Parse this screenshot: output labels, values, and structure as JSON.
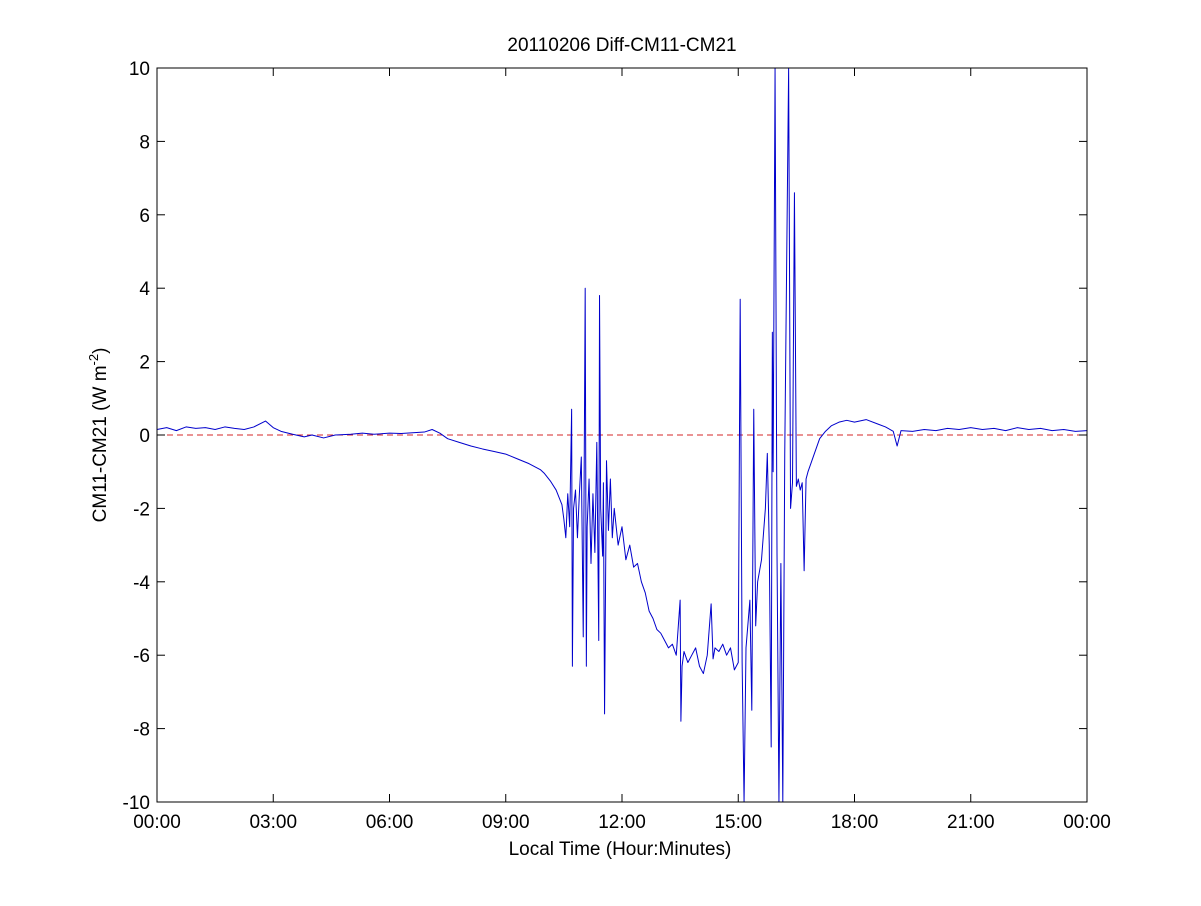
{
  "chart_data": {
    "type": "line",
    "title": "20110206 Diff-CM11-CM21",
    "xlabel": "Local Time (Hour:Minutes)",
    "ylabel": {
      "main": "CM11-CM21 (W m",
      "superscript": "-2",
      "close": ")"
    },
    "xlim": [
      0,
      24
    ],
    "ylim": [
      -10,
      10
    ],
    "x_unit": "hours",
    "x_ticks": [
      0,
      3,
      6,
      9,
      12,
      15,
      18,
      21,
      24
    ],
    "x_tick_labels": [
      "00:00",
      "03:00",
      "06:00",
      "09:00",
      "12:00",
      "15:00",
      "18:00",
      "21:00",
      "00:00"
    ],
    "y_ticks": [
      -10,
      -8,
      -6,
      -4,
      -2,
      0,
      2,
      4,
      6,
      8,
      10
    ],
    "y_tick_labels": [
      "-10",
      "-8",
      "-6",
      "-4",
      "-2",
      "0",
      "2",
      "4",
      "6",
      "8",
      "10"
    ],
    "grid": false,
    "reference_line": {
      "y": 0,
      "style": "dashed",
      "color": "#d62728"
    },
    "series": [
      {
        "color": "#0000cc",
        "points": [
          [
            0.0,
            0.15
          ],
          [
            0.25,
            0.2
          ],
          [
            0.5,
            0.12
          ],
          [
            0.75,
            0.22
          ],
          [
            1.0,
            0.18
          ],
          [
            1.25,
            0.2
          ],
          [
            1.5,
            0.15
          ],
          [
            1.75,
            0.22
          ],
          [
            2.0,
            0.18
          ],
          [
            2.25,
            0.15
          ],
          [
            2.5,
            0.22
          ],
          [
            2.8,
            0.38
          ],
          [
            3.0,
            0.2
          ],
          [
            3.2,
            0.1
          ],
          [
            3.5,
            0.02
          ],
          [
            3.8,
            -0.05
          ],
          [
            4.0,
            0.0
          ],
          [
            4.3,
            -0.08
          ],
          [
            4.6,
            0.0
          ],
          [
            5.0,
            0.02
          ],
          [
            5.3,
            0.05
          ],
          [
            5.6,
            0.02
          ],
          [
            6.0,
            0.05
          ],
          [
            6.3,
            0.04
          ],
          [
            6.6,
            0.06
          ],
          [
            6.9,
            0.08
          ],
          [
            7.1,
            0.15
          ],
          [
            7.3,
            0.05
          ],
          [
            7.5,
            -0.1
          ],
          [
            7.8,
            -0.2
          ],
          [
            8.1,
            -0.3
          ],
          [
            8.4,
            -0.38
          ],
          [
            8.7,
            -0.45
          ],
          [
            9.0,
            -0.52
          ],
          [
            9.3,
            -0.65
          ],
          [
            9.6,
            -0.78
          ],
          [
            9.9,
            -0.95
          ],
          [
            10.0,
            -1.05
          ],
          [
            10.15,
            -1.25
          ],
          [
            10.3,
            -1.5
          ],
          [
            10.45,
            -1.9
          ],
          [
            10.5,
            -2.3
          ],
          [
            10.55,
            -2.8
          ],
          [
            10.6,
            -1.6
          ],
          [
            10.65,
            -2.5
          ],
          [
            10.7,
            0.7
          ],
          [
            10.72,
            -6.3
          ],
          [
            10.75,
            -2.0
          ],
          [
            10.8,
            -1.5
          ],
          [
            10.85,
            -2.8
          ],
          [
            10.9,
            -1.6
          ],
          [
            10.95,
            -0.6
          ],
          [
            11.0,
            -5.5
          ],
          [
            11.05,
            4.0
          ],
          [
            11.08,
            -6.3
          ],
          [
            11.1,
            -2.5
          ],
          [
            11.15,
            -1.2
          ],
          [
            11.2,
            -3.5
          ],
          [
            11.25,
            -1.6
          ],
          [
            11.3,
            -3.2
          ],
          [
            11.35,
            -0.2
          ],
          [
            11.4,
            -5.6
          ],
          [
            11.42,
            3.8
          ],
          [
            11.45,
            -2.0
          ],
          [
            11.5,
            -3.3
          ],
          [
            11.52,
            -1.3
          ],
          [
            11.55,
            -7.6
          ],
          [
            11.6,
            -0.7
          ],
          [
            11.65,
            -2.6
          ],
          [
            11.7,
            -1.2
          ],
          [
            11.75,
            -2.8
          ],
          [
            11.8,
            -2.0
          ],
          [
            11.9,
            -3.0
          ],
          [
            12.0,
            -2.5
          ],
          [
            12.1,
            -3.4
          ],
          [
            12.2,
            -3.0
          ],
          [
            12.3,
            -3.6
          ],
          [
            12.4,
            -3.5
          ],
          [
            12.5,
            -4.0
          ],
          [
            12.6,
            -4.3
          ],
          [
            12.7,
            -4.8
          ],
          [
            12.8,
            -5.0
          ],
          [
            12.9,
            -5.3
          ],
          [
            13.0,
            -5.4
          ],
          [
            13.1,
            -5.6
          ],
          [
            13.2,
            -5.8
          ],
          [
            13.3,
            -5.7
          ],
          [
            13.4,
            -6.0
          ],
          [
            13.5,
            -4.5
          ],
          [
            13.52,
            -7.8
          ],
          [
            13.55,
            -6.3
          ],
          [
            13.6,
            -5.9
          ],
          [
            13.7,
            -6.2
          ],
          [
            13.8,
            -6.0
          ],
          [
            13.9,
            -5.8
          ],
          [
            14.0,
            -6.3
          ],
          [
            14.1,
            -6.5
          ],
          [
            14.2,
            -6.0
          ],
          [
            14.3,
            -4.6
          ],
          [
            14.35,
            -6.1
          ],
          [
            14.4,
            -5.8
          ],
          [
            14.5,
            -5.9
          ],
          [
            14.6,
            -5.7
          ],
          [
            14.7,
            -6.0
          ],
          [
            14.8,
            -5.8
          ],
          [
            14.9,
            -6.4
          ],
          [
            15.0,
            -6.2
          ],
          [
            15.05,
            3.7
          ],
          [
            15.1,
            -6.2
          ],
          [
            15.15,
            -10.0
          ],
          [
            15.2,
            -5.8
          ],
          [
            15.3,
            -4.5
          ],
          [
            15.35,
            -7.5
          ],
          [
            15.4,
            0.7
          ],
          [
            15.45,
            -5.2
          ],
          [
            15.5,
            -4.0
          ],
          [
            15.6,
            -3.4
          ],
          [
            15.7,
            -2.0
          ],
          [
            15.75,
            -0.5
          ],
          [
            15.8,
            -3.0
          ],
          [
            15.85,
            -8.5
          ],
          [
            15.88,
            2.8
          ],
          [
            15.9,
            -1.0
          ],
          [
            15.95,
            10.0
          ],
          [
            16.0,
            -3.2
          ],
          [
            16.05,
            -10.0
          ],
          [
            16.1,
            -3.5
          ],
          [
            16.15,
            -10.0
          ],
          [
            16.2,
            -0.5
          ],
          [
            16.3,
            10.0
          ],
          [
            16.35,
            -2.0
          ],
          [
            16.4,
            -1.3
          ],
          [
            16.45,
            6.6
          ],
          [
            16.5,
            -1.4
          ],
          [
            16.55,
            -1.2
          ],
          [
            16.6,
            -1.5
          ],
          [
            16.65,
            -1.3
          ],
          [
            16.7,
            -3.7
          ],
          [
            16.75,
            -1.2
          ],
          [
            16.8,
            -1.0
          ],
          [
            16.9,
            -0.7
          ],
          [
            17.0,
            -0.4
          ],
          [
            17.1,
            -0.1
          ],
          [
            17.25,
            0.1
          ],
          [
            17.4,
            0.25
          ],
          [
            17.6,
            0.35
          ],
          [
            17.8,
            0.4
          ],
          [
            18.0,
            0.35
          ],
          [
            18.3,
            0.42
          ],
          [
            18.6,
            0.3
          ],
          [
            18.8,
            0.22
          ],
          [
            19.0,
            0.1
          ],
          [
            19.1,
            -0.3
          ],
          [
            19.2,
            0.12
          ],
          [
            19.5,
            0.1
          ],
          [
            19.8,
            0.15
          ],
          [
            20.1,
            0.12
          ],
          [
            20.4,
            0.18
          ],
          [
            20.7,
            0.15
          ],
          [
            21.0,
            0.2
          ],
          [
            21.3,
            0.15
          ],
          [
            21.6,
            0.18
          ],
          [
            21.9,
            0.12
          ],
          [
            22.2,
            0.2
          ],
          [
            22.5,
            0.15
          ],
          [
            22.8,
            0.18
          ],
          [
            23.1,
            0.12
          ],
          [
            23.4,
            0.15
          ],
          [
            23.7,
            0.1
          ],
          [
            24.0,
            0.12
          ]
        ]
      }
    ]
  }
}
